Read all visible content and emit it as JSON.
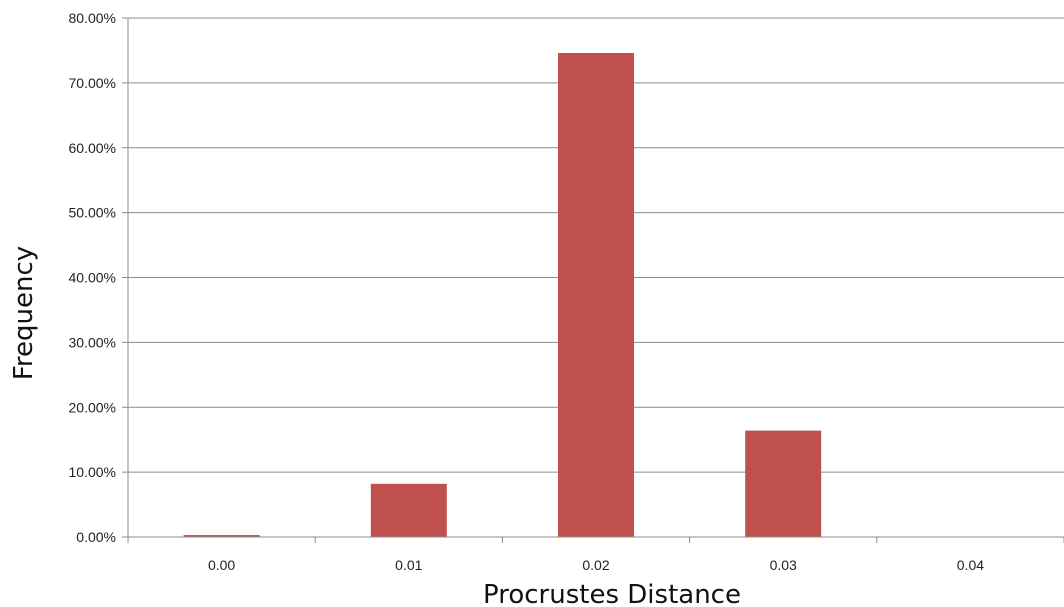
{
  "chart_data": {
    "type": "bar",
    "categories": [
      "0.00",
      "0.01",
      "0.02",
      "0.03",
      "0.04"
    ],
    "values": [
      0.3,
      8.2,
      74.6,
      16.4,
      0.0
    ],
    "title": "",
    "xlabel": "Procrustes Distance",
    "ylabel": "Frequency",
    "ylim": [
      0,
      80
    ],
    "yticks": [
      "0.00%",
      "10.00%",
      "20.00%",
      "30.00%",
      "40.00%",
      "50.00%",
      "60.00%",
      "70.00%",
      "80.00%"
    ],
    "grid": true,
    "legend": "none",
    "bar_color": "#c0504d"
  }
}
